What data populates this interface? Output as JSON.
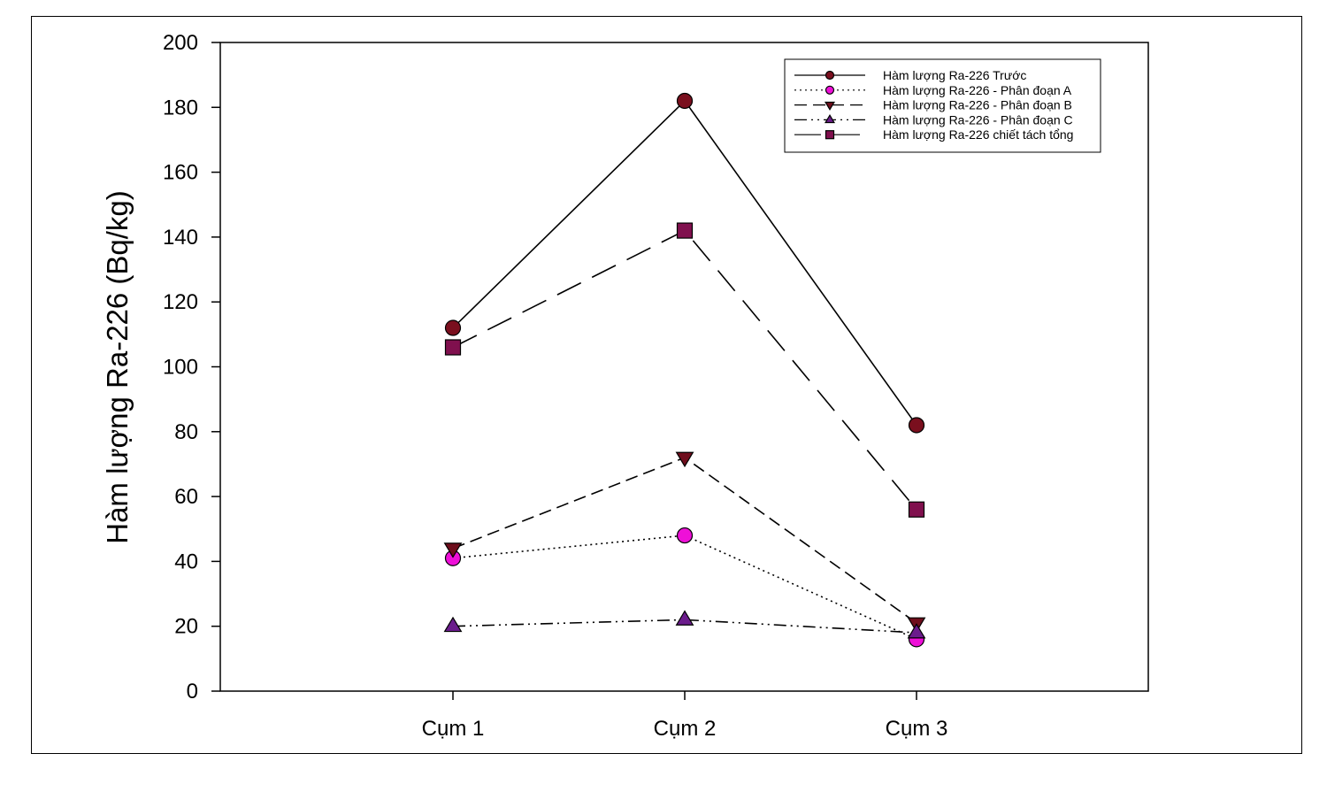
{
  "chart_data": {
    "type": "line",
    "title": "",
    "xlabel": "",
    "ylabel": "Hàm lượng Ra-226 (Bq/kg)",
    "categories": [
      "Cụm 1",
      "Cụm 2",
      "Cụm 3"
    ],
    "ylim": [
      0,
      200
    ],
    "yticks": [
      "0",
      "20",
      "40",
      "60",
      "80",
      "100",
      "120",
      "140",
      "160",
      "180",
      "200"
    ],
    "grid": false,
    "legend_position": "top-right",
    "series": [
      {
        "name": "Hàm lượng Ra-226 Trước",
        "values": [
          112,
          182,
          82
        ],
        "marker": "circle",
        "dash": "solid",
        "color": "#7a0f1e"
      },
      {
        "name": "Hàm lượng Ra-226 - Phân đoạn A",
        "values": [
          41,
          48,
          16
        ],
        "marker": "circle",
        "dash": "dotted",
        "color": "#ee10d8"
      },
      {
        "name": "Hàm lượng Ra-226 - Phân đoạn B",
        "values": [
          44,
          72,
          21
        ],
        "marker": "triangle-down",
        "dash": "short-dash",
        "color": "#6e0d1c"
      },
      {
        "name": "Hàm lượng Ra-226 - Phân đoạn C",
        "values": [
          20,
          22,
          18
        ],
        "marker": "triangle-up",
        "dash": "dash-dot-dot",
        "color": "#6b1c8c"
      },
      {
        "name": "Hàm lượng Ra-226  chiết tách tổng",
        "values": [
          106,
          142,
          56
        ],
        "marker": "square",
        "dash": "long-dash",
        "color": "#80104e"
      }
    ]
  }
}
